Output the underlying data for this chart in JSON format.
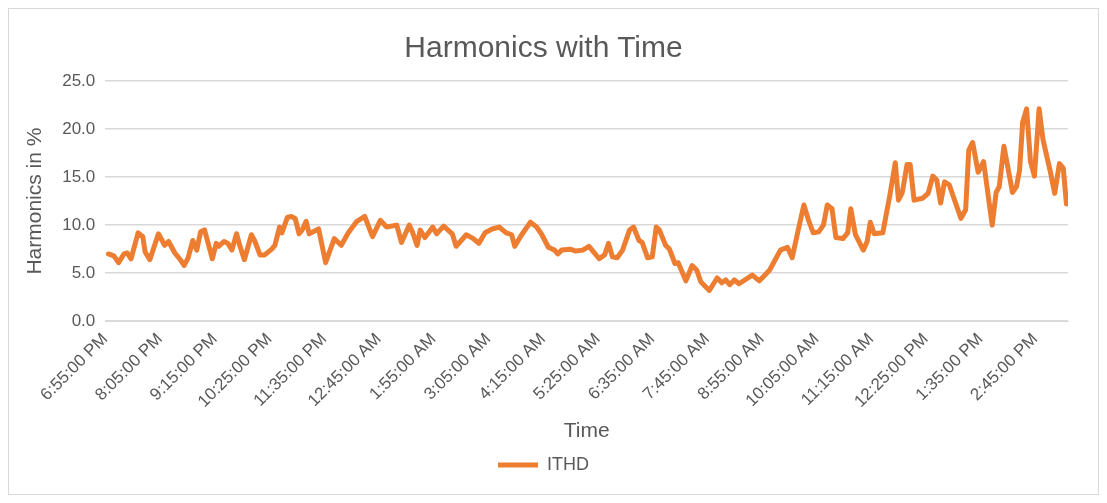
{
  "chart_data": {
    "type": "line",
    "title": "Harmonics with Time",
    "xlabel": "Time",
    "ylabel": "Harmonics in %",
    "x": [
      "2000-01-01T18:59",
      "2000-01-01T19:06",
      "2000-01-01T19:12",
      "2000-01-01T19:19",
      "2000-01-01T19:23",
      "2000-01-01T19:28",
      "2000-01-01T19:37",
      "2000-01-01T19:43",
      "2000-01-01T19:46",
      "2000-01-01T19:52",
      "2000-01-01T20:03",
      "2000-01-01T20:11",
      "2000-01-01T20:16",
      "2000-01-01T20:24",
      "2000-01-01T20:31",
      "2000-01-01T20:36",
      "2000-01-01T20:41",
      "2000-01-01T20:47",
      "2000-01-01T20:52",
      "2000-01-01T20:57",
      "2000-01-01T21:02",
      "2000-01-01T21:12",
      "2000-01-01T21:17",
      "2000-01-01T21:20",
      "2000-01-01T21:27",
      "2000-01-01T21:32",
      "2000-01-01T21:37",
      "2000-01-01T21:43",
      "2000-01-01T21:47",
      "2000-01-01T21:53",
      "2000-01-01T22:02",
      "2000-01-01T22:06",
      "2000-01-01T22:13",
      "2000-01-01T22:19",
      "2000-01-01T22:28",
      "2000-01-01T22:32",
      "2000-01-01T22:38",
      "2000-01-01T22:41",
      "2000-01-01T22:48",
      "2000-01-01T22:53",
      "2000-01-01T22:58",
      "2000-01-01T23:03",
      "2000-01-01T23:07",
      "2000-01-01T23:12",
      "2000-01-01T23:16",
      "2000-01-01T23:28",
      "2000-01-01T23:37",
      "2000-01-01T23:48",
      "2000-01-01T23:57",
      "2000-01-02T00:06",
      "2000-01-02T00:17",
      "2000-01-02T00:27",
      "2000-01-02T00:37",
      "2000-01-02T00:47",
      "2000-01-02T00:55",
      "2000-01-02T01:08",
      "2000-01-02T01:14",
      "2000-01-02T01:24",
      "2000-01-02T01:28",
      "2000-01-02T01:34",
      "2000-01-02T01:38",
      "2000-01-02T01:44",
      "2000-01-02T01:54",
      "2000-01-02T01:59",
      "2000-01-02T02:08",
      "2000-01-02T02:19",
      "2000-01-02T02:24",
      "2000-01-02T02:37",
      "2000-01-02T02:46",
      "2000-01-02T02:53",
      "2000-01-02T03:01",
      "2000-01-02T03:10",
      "2000-01-02T03:19",
      "2000-01-02T03:28",
      "2000-01-02T03:35",
      "2000-01-02T03:39",
      "2000-01-02T03:47",
      "2000-01-02T03:59",
      "2000-01-02T04:07",
      "2000-01-02T04:13",
      "2000-01-02T04:22",
      "2000-01-02T04:30",
      "2000-01-02T04:34",
      "2000-01-02T04:39",
      "2000-01-02T04:50",
      "2000-01-02T04:57",
      "2000-01-02T05:06",
      "2000-01-02T05:14",
      "2000-01-02T05:19",
      "2000-01-02T05:27",
      "2000-01-02T05:34",
      "2000-01-02T05:39",
      "2000-01-02T05:44",
      "2000-01-02T05:50",
      "2000-01-02T05:57",
      "2000-01-02T06:06",
      "2000-01-02T06:11",
      "2000-01-02T06:18",
      "2000-01-02T06:22",
      "2000-01-02T06:29",
      "2000-01-02T06:35",
      "2000-01-02T06:40",
      "2000-01-02T06:44",
      "2000-01-02T06:52",
      "2000-01-02T06:57",
      "2000-01-02T07:04",
      "2000-01-02T07:08",
      "2000-01-02T07:18",
      "2000-01-02T07:26",
      "2000-01-02T07:32",
      "2000-01-02T07:37",
      "2000-01-02T07:48",
      "2000-01-02T07:58",
      "2000-01-02T08:04",
      "2000-01-02T08:09",
      "2000-01-02T08:14",
      "2000-01-02T08:20",
      "2000-01-02T08:26",
      "2000-01-02T08:43",
      "2000-01-02T08:52",
      "2000-01-02T09:05",
      "2000-01-02T09:19",
      "2000-01-02T09:28",
      "2000-01-02T09:34",
      "2000-01-02T09:41",
      "2000-01-02T09:49",
      "2000-01-02T09:55",
      "2000-01-02T10:01",
      "2000-01-02T10:08",
      "2000-01-02T10:14",
      "2000-01-02T10:19",
      "2000-01-02T10:25",
      "2000-01-02T10:30",
      "2000-01-02T10:39",
      "2000-01-02T10:45",
      "2000-01-02T10:49",
      "2000-01-02T10:55",
      "2000-01-02T11:05",
      "2000-01-02T11:10",
      "2000-01-02T11:14",
      "2000-01-02T11:19",
      "2000-01-02T11:30",
      "2000-01-02T11:39",
      "2000-01-02T11:46",
      "2000-01-02T11:50",
      "2000-01-02T11:55",
      "2000-01-02T12:01",
      "2000-01-02T12:05",
      "2000-01-02T12:10",
      "2000-01-02T12:21",
      "2000-01-02T12:28",
      "2000-01-02T12:34",
      "2000-01-02T12:39",
      "2000-01-02T12:44",
      "2000-01-02T12:49",
      "2000-01-02T12:55",
      "2000-01-02T13:04",
      "2000-01-02T13:10",
      "2000-01-02T13:16",
      "2000-01-02T13:20",
      "2000-01-02T13:25",
      "2000-01-02T13:32",
      "2000-01-02T13:39",
      "2000-01-02T13:50",
      "2000-01-02T13:55",
      "2000-01-02T13:59",
      "2000-01-02T14:05",
      "2000-01-02T14:16",
      "2000-01-02T14:21",
      "2000-01-02T14:25",
      "2000-01-02T14:29",
      "2000-01-02T14:34",
      "2000-01-02T14:39",
      "2000-01-02T14:44",
      "2000-01-02T14:50",
      "2000-01-02T14:55",
      "2000-01-02T15:04",
      "2000-01-02T15:10",
      "2000-01-02T15:16",
      "2000-01-02T15:21",
      "2000-01-02T15:25"
    ],
    "series": [
      {
        "name": "ITHD",
        "color": "#ed7d31",
        "values": [
          7.0,
          6.8,
          6.1,
          7.0,
          7.1,
          6.5,
          9.2,
          8.8,
          7.2,
          6.4,
          9.1,
          7.9,
          8.3,
          7.1,
          6.4,
          5.8,
          6.6,
          8.4,
          7.4,
          9.3,
          9.5,
          6.5,
          8.1,
          7.8,
          8.3,
          8.1,
          7.4,
          9.1,
          7.9,
          6.4,
          9.0,
          8.4,
          6.9,
          6.9,
          7.5,
          7.9,
          9.8,
          9.2,
          10.8,
          10.9,
          10.7,
          9.1,
          9.5,
          10.4,
          9.1,
          9.6,
          6.1,
          8.6,
          7.9,
          9.2,
          10.4,
          10.9,
          8.8,
          10.5,
          9.8,
          10.0,
          8.2,
          10.0,
          9.3,
          7.9,
          9.5,
          8.7,
          9.8,
          9.1,
          9.9,
          9.1,
          7.8,
          9.0,
          8.6,
          8.1,
          9.2,
          9.6,
          9.8,
          9.2,
          9.0,
          7.8,
          8.9,
          10.3,
          9.8,
          9.1,
          7.7,
          7.4,
          7.0,
          7.4,
          7.5,
          7.3,
          7.4,
          7.8,
          7.3,
          6.5,
          6.9,
          8.1,
          6.7,
          6.6,
          7.4,
          9.5,
          9.8,
          8.4,
          8.2,
          6.6,
          6.7,
          9.8,
          9.5,
          7.9,
          7.5,
          6.0,
          6.1,
          4.2,
          5.8,
          5.3,
          4.1,
          3.2,
          4.5,
          4.0,
          4.3,
          3.8,
          4.3,
          3.9,
          4.8,
          4.2,
          5.3,
          7.4,
          7.7,
          6.6,
          9.2,
          12.1,
          10.5,
          9.2,
          9.3,
          10.0,
          12.1,
          11.7,
          8.7,
          8.6,
          9.2,
          11.7,
          9.0,
          7.4,
          8.3,
          10.3,
          9.1,
          9.2,
          13.1,
          16.5,
          12.6,
          13.4,
          16.3,
          16.3,
          12.6,
          12.8,
          13.3,
          15.1,
          14.7,
          12.3,
          14.5,
          14.2,
          12.1,
          10.7,
          11.6,
          17.8,
          18.6,
          15.5,
          16.6,
          10.0,
          13.4,
          14.0,
          18.2,
          13.4,
          14.0,
          15.7,
          20.7,
          22.1,
          16.6,
          15.1,
          22.1,
          18.9,
          15.7,
          13.3,
          16.4,
          15.9,
          12.2
        ]
      }
    ],
    "xlim": [
      "2000-01-01T18:55",
      "2000-01-02T15:27"
    ],
    "xticks": [
      {
        "value": "2000-01-01T18:55",
        "label": "6:55:00 PM"
      },
      {
        "value": "2000-01-01T20:05",
        "label": "8:05:00 PM"
      },
      {
        "value": "2000-01-01T21:15",
        "label": "9:15:00 PM"
      },
      {
        "value": "2000-01-01T22:25",
        "label": "10:25:00 PM"
      },
      {
        "value": "2000-01-01T23:35",
        "label": "11:35:00 PM"
      },
      {
        "value": "2000-01-02T00:45",
        "label": "12:45:00 AM"
      },
      {
        "value": "2000-01-02T01:55",
        "label": "1:55:00 AM"
      },
      {
        "value": "2000-01-02T03:05",
        "label": "3:05:00 AM"
      },
      {
        "value": "2000-01-02T04:15",
        "label": "4:15:00 AM"
      },
      {
        "value": "2000-01-02T05:25",
        "label": "5:25:00 AM"
      },
      {
        "value": "2000-01-02T06:35",
        "label": "6:35:00 AM"
      },
      {
        "value": "2000-01-02T07:45",
        "label": "7:45:00 AM"
      },
      {
        "value": "2000-01-02T08:55",
        "label": "8:55:00 AM"
      },
      {
        "value": "2000-01-02T10:05",
        "label": "10:05:00 AM"
      },
      {
        "value": "2000-01-02T11:15",
        "label": "11:15:00 AM"
      },
      {
        "value": "2000-01-02T12:25",
        "label": "12:25:00 PM"
      },
      {
        "value": "2000-01-02T13:35",
        "label": "1:35:00 PM"
      },
      {
        "value": "2000-01-02T14:45",
        "label": "2:45:00 PM"
      }
    ],
    "ylim": [
      0,
      25
    ],
    "yticks": [
      {
        "value": 0,
        "label": "0.0"
      },
      {
        "value": 5,
        "label": "5.0"
      },
      {
        "value": 10,
        "label": "10.0"
      },
      {
        "value": 15,
        "label": "15.0"
      },
      {
        "value": 20,
        "label": "20.0"
      },
      {
        "value": 25,
        "label": "25.0"
      }
    ],
    "grid": "y",
    "legend": "bottom"
  }
}
